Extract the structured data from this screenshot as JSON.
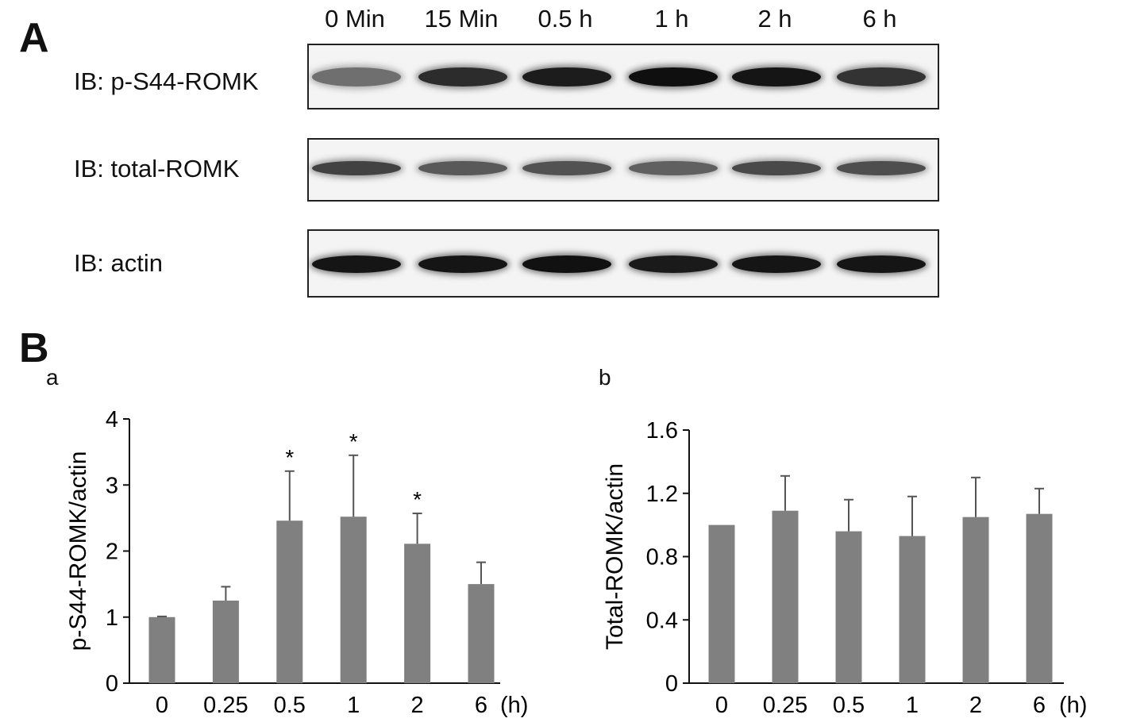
{
  "panel_a": {
    "letter": "A",
    "lanes": [
      "0 Min",
      "15 Min",
      "0.5 h",
      "1 h",
      "2 h",
      "6 h"
    ],
    "blots": [
      {
        "label": "IB: p-S44-ROMK",
        "intensity": [
          0.55,
          0.85,
          0.92,
          0.98,
          0.95,
          0.82
        ]
      },
      {
        "label": "IB: total-ROMK",
        "intensity": [
          0.75,
          0.65,
          0.68,
          0.62,
          0.72,
          0.7
        ]
      },
      {
        "label": "IB: actin",
        "intensity": [
          0.95,
          0.95,
          0.97,
          0.93,
          0.95,
          0.95
        ]
      }
    ]
  },
  "panel_b": {
    "letter": "B"
  },
  "chart_data": [
    {
      "type": "bar",
      "panel": "a",
      "categories": [
        "0",
        "0.25",
        "0.5",
        "1",
        "2",
        "6"
      ],
      "x_unit": "(h)",
      "ylabel": "p-S44-ROMK/actin",
      "ylim": [
        0,
        4
      ],
      "yticks": [
        "0",
        "1",
        "2",
        "3",
        "4"
      ],
      "values": [
        1.0,
        1.25,
        2.46,
        2.52,
        2.11,
        1.5
      ],
      "errors": [
        0.01,
        0.21,
        0.75,
        0.93,
        0.46,
        0.33
      ],
      "significance": [
        "",
        "",
        "*",
        "*",
        "*",
        ""
      ],
      "bar_color": "#808080"
    },
    {
      "type": "bar",
      "panel": "b",
      "categories": [
        "0",
        "0.25",
        "0.5",
        "1",
        "2",
        "6"
      ],
      "x_unit": "(h)",
      "ylabel": "Total-ROMK/actin",
      "ylim": [
        0,
        1.6
      ],
      "yticks": [
        "0",
        "0.4",
        "0.8",
        "1.2",
        "1.6"
      ],
      "values": [
        1.0,
        1.09,
        0.96,
        0.93,
        1.05,
        1.07
      ],
      "errors": [
        0.0,
        0.22,
        0.2,
        0.25,
        0.25,
        0.16
      ],
      "significance": [
        "",
        "",
        "",
        "",
        "",
        ""
      ],
      "bar_color": "#808080"
    }
  ]
}
